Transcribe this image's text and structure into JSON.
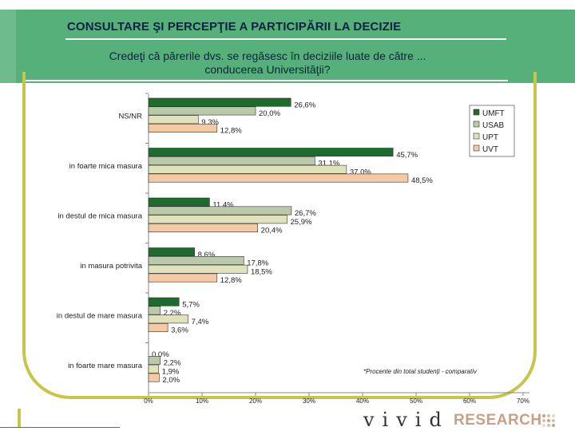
{
  "header": {
    "title": "CONSULTARE ŞI PERCEPŢIE A PARTICIPĂRII LA DECIZIE",
    "subtitle_line1": "Credeţi că părerile dvs. se regăsesc în deciziile luate de către ...",
    "subtitle_line2": "conducerea Universităţii?"
  },
  "footnote": "*Procente din total studenţi - comparativ",
  "logo": {
    "brand": "vivid",
    "tagline": "RESEARCH"
  },
  "colors": {
    "UMFT": "#1e6b2e",
    "USAB": "#b9c9a9",
    "UPT": "#e0e2bb",
    "UVT": "#f5c9a4",
    "frame": "#c8c64a",
    "header": "#55b07a"
  },
  "chart_data": {
    "type": "bar",
    "orientation": "horizontal",
    "categories": [
      "NS/NR",
      "in foarte mica masura",
      "in destul de mica masura",
      "in masura potrivita",
      "in destul de mare masura",
      "in foarte mare masura"
    ],
    "series": [
      {
        "name": "UMFT",
        "values": [
          26.6,
          45.7,
          11.4,
          8.6,
          5.7,
          0.0
        ],
        "labels": [
          "26,6%",
          "45,7%",
          "11,4%",
          "8,6%",
          "5,7%",
          "0,0%"
        ]
      },
      {
        "name": "USAB",
        "values": [
          20.0,
          31.1,
          26.7,
          17.8,
          2.2,
          2.2
        ],
        "labels": [
          "20,0%",
          "31,1%",
          "26,7%",
          "17,8%",
          "2,2%",
          "2,2%"
        ]
      },
      {
        "name": "UPT",
        "values": [
          9.3,
          37.0,
          25.9,
          18.5,
          7.4,
          1.9
        ],
        "labels": [
          "9,3%",
          "37,0%",
          "25,9%",
          "18,5%",
          "7,4%",
          "1,9%"
        ]
      },
      {
        "name": "UVT",
        "values": [
          12.8,
          48.5,
          20.4,
          12.8,
          3.6,
          2.0
        ],
        "labels": [
          "12,8%",
          "48,5%",
          "20,4%",
          "12,8%",
          "3,6%",
          "2,0%"
        ]
      }
    ],
    "xlim": [
      0,
      70
    ],
    "x_ticks": [
      "0%",
      "10%",
      "20%",
      "30%",
      "40%",
      "50%",
      "60%",
      "70%"
    ],
    "grid": false,
    "legend": "top-right"
  }
}
